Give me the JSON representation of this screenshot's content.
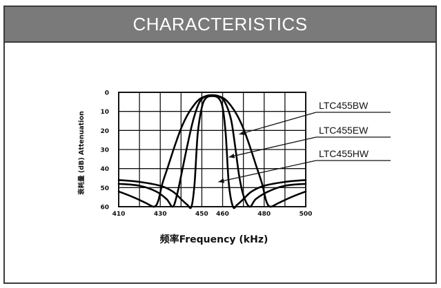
{
  "header": {
    "title": "CHARACTERISTICS"
  },
  "chart_data": {
    "type": "line",
    "xlabel": "频率Frequency (kHz)",
    "ylabel": "衰耗量 (dB) Attenuation",
    "xlim": [
      410,
      500
    ],
    "ylim": [
      0,
      60
    ],
    "y_inverted": true,
    "grid": true,
    "x_ticks": [
      410,
      430,
      450,
      460,
      480,
      500
    ],
    "y_ticks": [
      0,
      10,
      20,
      30,
      40,
      50,
      60
    ],
    "x_tick_labels": [
      "410",
      "430",
      "450",
      "460",
      "480",
      "500"
    ],
    "y_tick_labels": [
      "0",
      "10",
      "20",
      "30",
      "40",
      "50",
      "60"
    ],
    "series": [
      {
        "name": "LTC455BW",
        "x": [
          410,
          417,
          423,
          427,
          429,
          431,
          434,
          437,
          440,
          443,
          446,
          449,
          452,
          455,
          458,
          461,
          464,
          467,
          470,
          473,
          476,
          479,
          481,
          483,
          487,
          493,
          500
        ],
        "y": [
          52,
          55,
          58,
          60,
          57,
          48,
          38,
          28,
          19,
          12,
          7,
          3.5,
          2,
          1.5,
          2,
          3.5,
          7,
          12,
          19,
          28,
          38,
          48,
          57,
          60,
          58,
          55,
          52
        ]
      },
      {
        "name": "LTC455EW",
        "x": [
          410,
          420,
          428,
          433,
          436,
          438,
          440,
          443,
          446,
          449,
          452,
          455,
          458,
          461,
          464,
          466,
          468,
          470,
          473,
          476,
          482,
          490,
          500
        ],
        "y": [
          48,
          49,
          52,
          56,
          60,
          54,
          44,
          28,
          14,
          5,
          2,
          1.5,
          2,
          5,
          14,
          28,
          44,
          54,
          60,
          56,
          52,
          49,
          48
        ]
      },
      {
        "name": "LTC455HW",
        "x": [
          410,
          420,
          430,
          436,
          440,
          443,
          445,
          446.5,
          448,
          450,
          452,
          455,
          458,
          460,
          461.5,
          463,
          465,
          467,
          470,
          474,
          480,
          490,
          500
        ],
        "y": [
          46,
          47,
          49,
          52,
          56,
          59,
          60,
          48,
          22,
          8,
          3,
          2,
          3,
          8,
          22,
          48,
          60,
          59,
          56,
          52,
          49,
          47,
          46
        ]
      }
    ],
    "annotations": [
      {
        "text": "LTC455BW",
        "points_to_x": 468,
        "points_to_y": 22
      },
      {
        "text": "LTC455EW",
        "points_to_x": 463,
        "points_to_y": 34
      },
      {
        "text": "LTC455HW",
        "points_to_x": 458,
        "points_to_y": 47
      }
    ]
  }
}
